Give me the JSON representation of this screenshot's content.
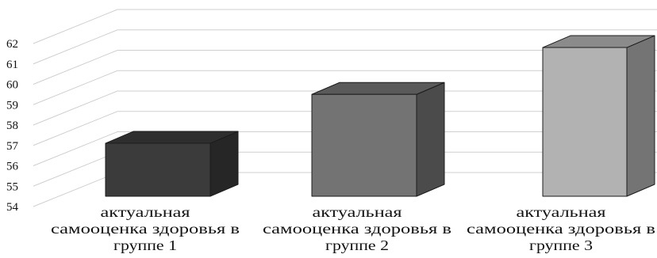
{
  "chart_data": {
    "type": "bar",
    "style": "3d-column",
    "categories": [
      "актуальная самооценка здоровья в группе 1",
      "актуальная самооценка здоровья в группе 2",
      "актуальная самооценка здоровья в группе 3"
    ],
    "values": [
      56.6,
      59.0,
      61.3
    ],
    "ylim": [
      54,
      62
    ],
    "yticks": [
      54,
      55,
      56,
      57,
      58,
      59,
      60,
      61,
      62
    ],
    "grid": true,
    "legend": "none",
    "colors": [
      "#3b3b3b",
      "#737373",
      "#b2b2b2"
    ]
  }
}
